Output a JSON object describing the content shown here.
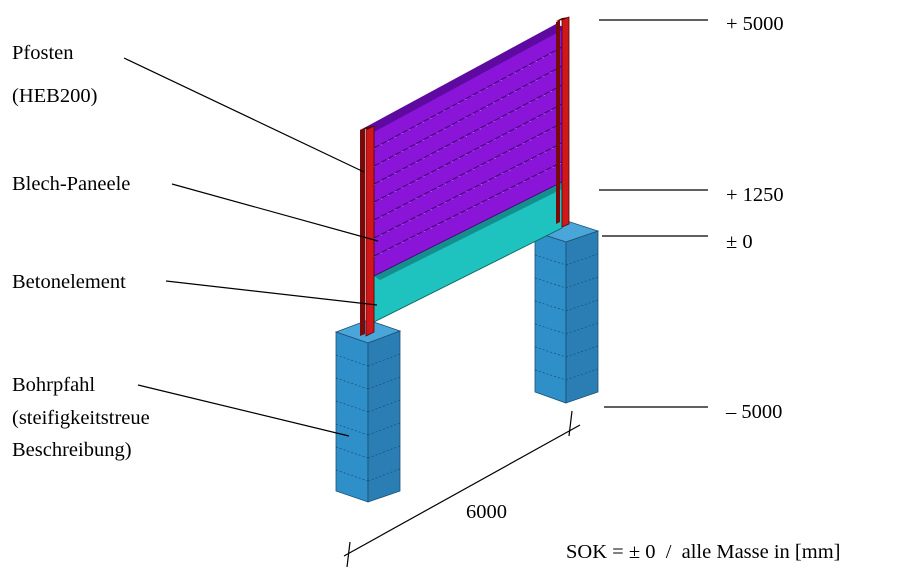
{
  "labels": {
    "pfosten": "Pfosten",
    "pfosten_type": "(HEB200)",
    "panels": "Blech-Paneele",
    "beton": "Betonelement",
    "pile_1": "Bohrpfahl",
    "pile_2": "(steifigkeitstreue",
    "pile_3": "Beschreibung)"
  },
  "levels": {
    "top": "+ 5000",
    "mid": "+ 1250",
    "zero": "± 0",
    "bottom": "– 5000"
  },
  "dimension": "6000",
  "footnote": "SOK = ± 0  /  alle Masse in [mm]",
  "colors": {
    "post": "#d01818",
    "post_dark": "#7a0a0a",
    "panel": "#8a14d8",
    "panel_dark": "#5e0aa0",
    "panel_line": "#3b0a66",
    "concrete_front": "#1ec3c0",
    "concrete_top": "#158f8d",
    "pile_front": "#2f8fc8",
    "pile_side": "#2a7eb4",
    "pile_top": "#4aa6d8"
  }
}
